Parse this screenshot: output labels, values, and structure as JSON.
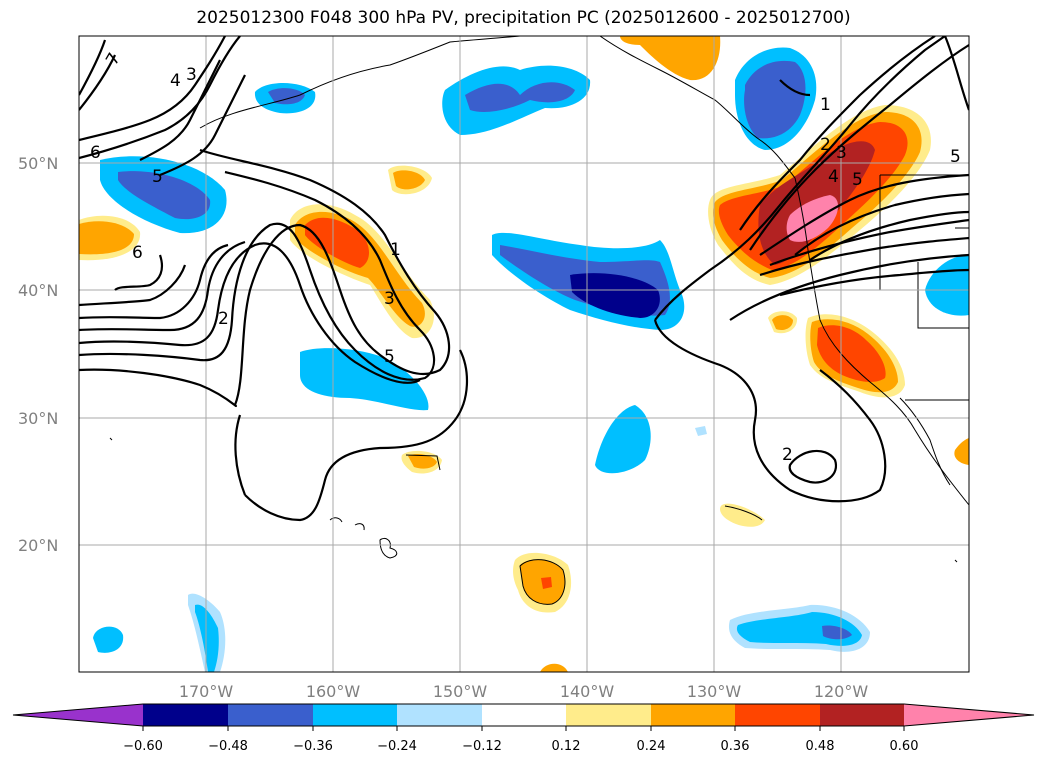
{
  "title": "2025012300 F048 300 hPa PV, precipitation PC (2025012600 - 2025012700)",
  "lat_labels": [
    "50°N",
    "40°N",
    "30°N",
    "20°N"
  ],
  "lon_labels": [
    "170°W",
    "160°W",
    "150°W",
    "140°W",
    "130°W",
    "120°W"
  ],
  "contour_labels": [
    "7",
    "4",
    "3",
    "6",
    "5",
    "6",
    "2",
    "1",
    "3",
    "5",
    "1",
    "2",
    "3",
    "4",
    "5",
    "5",
    "2"
  ],
  "colorbar": {
    "ticks": [
      "−0.60",
      "−0.48",
      "−0.36",
      "−0.24",
      "−0.12",
      "0.12",
      "0.24",
      "0.36",
      "0.48",
      "0.60"
    ],
    "colors": [
      "#9932cc",
      "#00008b",
      "#3a5fcd",
      "#00bfff",
      "#b0e2ff",
      "#ffffff",
      "#ffec8b",
      "#ffa500",
      "#ff4500",
      "#b22222",
      "#ff82ab"
    ]
  }
}
